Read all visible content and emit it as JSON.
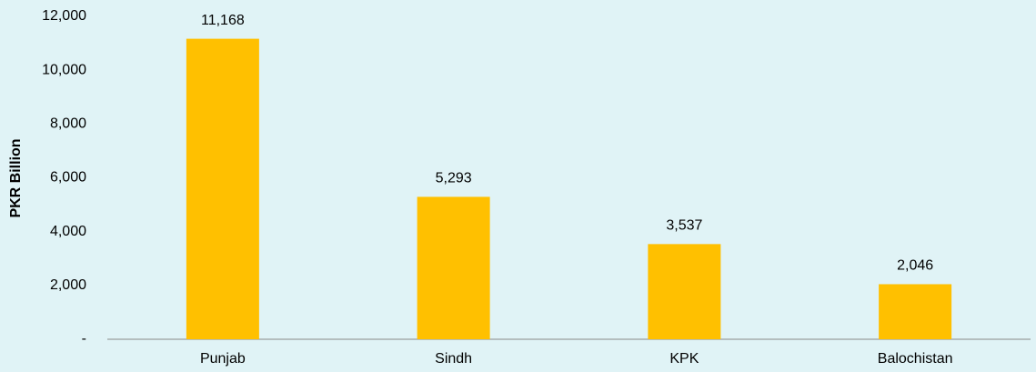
{
  "chart_data": {
    "type": "bar",
    "y_axis_label": "PKR Billion",
    "categories": [
      "Punjab",
      "Sindh",
      "KPK",
      "Balochistan"
    ],
    "values": [
      11168,
      5293,
      3537,
      2046
    ],
    "value_labels": [
      "11,168",
      "5,293",
      "3,537",
      "2,046"
    ],
    "color": "#ffc000",
    "ylim": [
      0,
      12000
    ],
    "yticks": [
      {
        "value": 0,
        "label": "-"
      },
      {
        "value": 2000,
        "label": "2,000"
      },
      {
        "value": 4000,
        "label": "4,000"
      },
      {
        "value": 6000,
        "label": "6,000"
      },
      {
        "value": 8000,
        "label": "8,000"
      },
      {
        "value": 10000,
        "label": "10,000"
      },
      {
        "value": 12000,
        "label": "12,000"
      }
    ],
    "grid": false
  }
}
